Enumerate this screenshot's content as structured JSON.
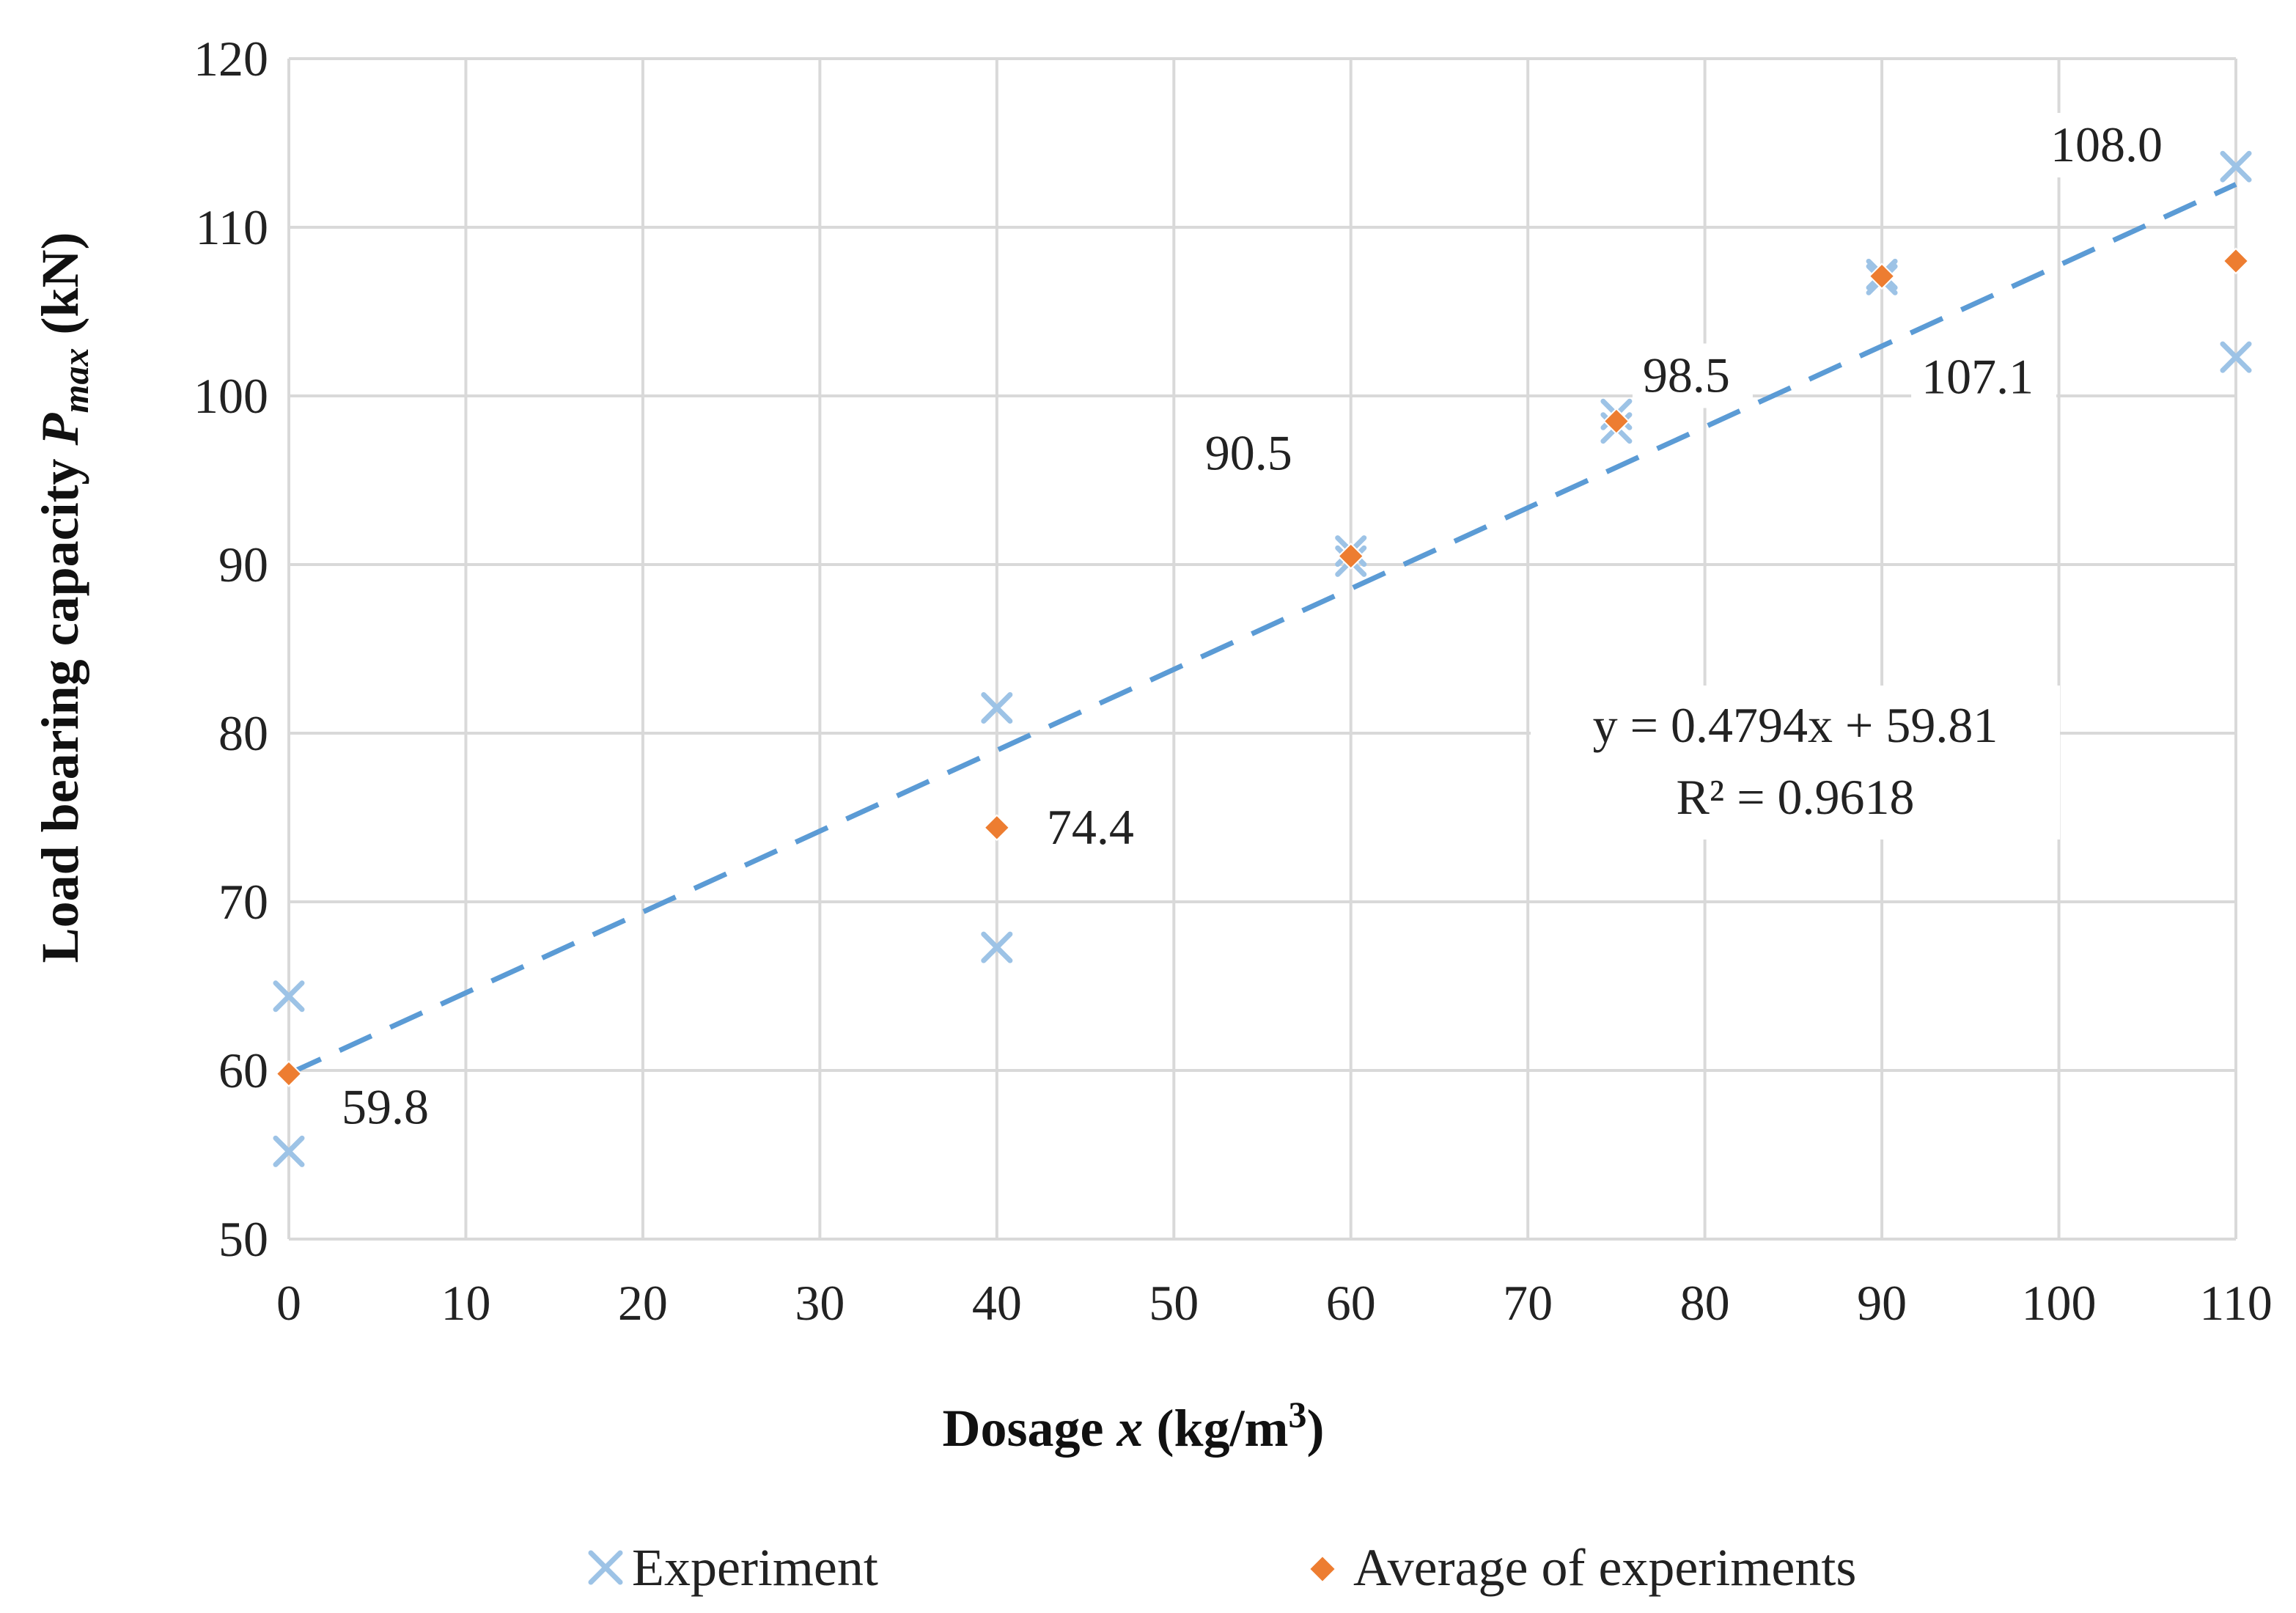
{
  "chart_data": {
    "type": "scatter",
    "xlabel": {
      "prefix": "Dosage ",
      "var": "x",
      "unit": "  (kg/m",
      "sup": "3",
      "close": ")"
    },
    "ylabel": {
      "prefix": "Load bearing capacity  ",
      "var": "P",
      "sub": "max",
      "unit": "  (kN)"
    },
    "xlim": [
      0,
      110
    ],
    "ylim": [
      50,
      120
    ],
    "xticks": [
      0,
      10,
      20,
      30,
      40,
      50,
      60,
      70,
      80,
      90,
      100,
      110
    ],
    "yticks": [
      50,
      60,
      70,
      80,
      90,
      100,
      110,
      120
    ],
    "grid": true,
    "legend_position": "bottom",
    "colors": {
      "experiment": "#9dc3e6",
      "average": "#ed7d31",
      "trendline": "#5b9bd5",
      "grid": "#d9d9d9"
    },
    "series": [
      {
        "name": "Experiment",
        "marker": "x",
        "points": [
          [
            0,
            64.4
          ],
          [
            0,
            55.2
          ],
          [
            40,
            81.5
          ],
          [
            40,
            67.3
          ],
          [
            60,
            90.8
          ],
          [
            60,
            90.2
          ],
          [
            75,
            98.9
          ],
          [
            75,
            98.1
          ],
          [
            90,
            107.2
          ],
          [
            90,
            106.9
          ],
          [
            110,
            113.6
          ],
          [
            110,
            102.3
          ]
        ]
      },
      {
        "name": "Average of experiments",
        "marker": "diamond",
        "points": [
          [
            0,
            59.8
          ],
          [
            40,
            74.4
          ],
          [
            60,
            90.5
          ],
          [
            75,
            98.5
          ],
          [
            90,
            107.1
          ],
          [
            110,
            108.0
          ]
        ],
        "labels": [
          "59.8",
          "74.4",
          "90.5",
          "98.5",
          "107.1",
          "108.0"
        ]
      }
    ],
    "trendline": {
      "type": "linear",
      "slope": 0.4794,
      "intercept": 59.81,
      "equation": "y = 0.4794x + 59.81",
      "r2": "R² = 0.9618"
    }
  }
}
